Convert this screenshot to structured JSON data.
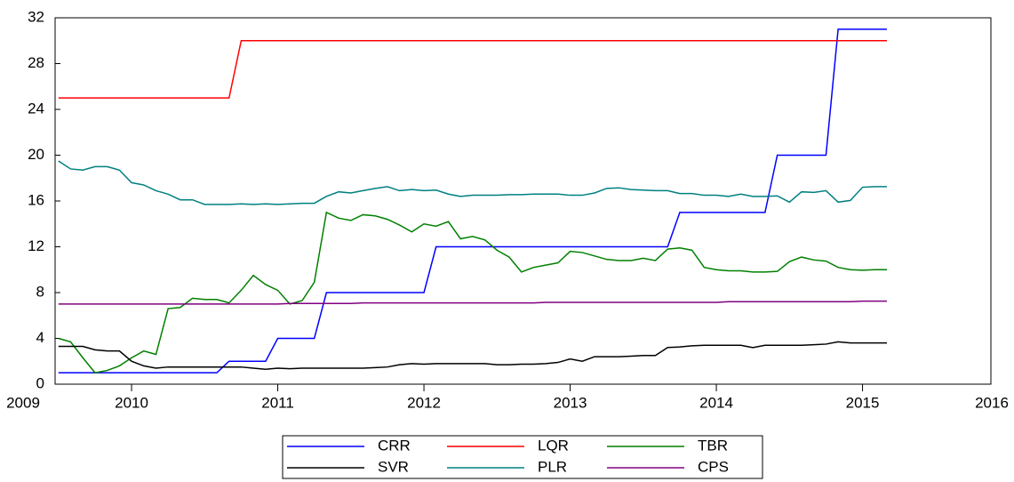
{
  "chart_data": {
    "type": "line",
    "x": [
      2009.5,
      2009.583,
      2009.667,
      2009.75,
      2009.833,
      2009.917,
      2010,
      2010.083,
      2010.167,
      2010.25,
      2010.333,
      2010.417,
      2010.5,
      2010.583,
      2010.667,
      2010.75,
      2010.833,
      2010.917,
      2011,
      2011.083,
      2011.167,
      2011.25,
      2011.333,
      2011.417,
      2011.5,
      2011.583,
      2011.667,
      2011.75,
      2011.833,
      2011.917,
      2012,
      2012.083,
      2012.167,
      2012.25,
      2012.333,
      2012.417,
      2012.5,
      2012.583,
      2012.667,
      2012.75,
      2012.833,
      2012.917,
      2013,
      2013.083,
      2013.167,
      2013.25,
      2013.333,
      2013.417,
      2013.5,
      2013.583,
      2013.667,
      2013.75,
      2013.833,
      2013.917,
      2014,
      2014.083,
      2014.167,
      2014.25,
      2014.333,
      2014.417,
      2014.5,
      2014.583,
      2014.667,
      2014.75,
      2014.833,
      2014.917,
      2015,
      2015.083,
      2015.167
    ],
    "series": [
      {
        "name": "CRR",
        "color": "#0000ff",
        "values": [
          1,
          1,
          1,
          1,
          1,
          1,
          1,
          1,
          1,
          1,
          1,
          1,
          1,
          1,
          2,
          2,
          2,
          2,
          4,
          4,
          4,
          4,
          8,
          8,
          8,
          8,
          8,
          8,
          8,
          8,
          8,
          12,
          12,
          12,
          12,
          12,
          12,
          12,
          12,
          12,
          12,
          12,
          12,
          12,
          12,
          12,
          12,
          12,
          12,
          12,
          12,
          15,
          15,
          15,
          15,
          15,
          15,
          15,
          15,
          20,
          20,
          20,
          20,
          20,
          31,
          31,
          31,
          31,
          31
        ]
      },
      {
        "name": "LQR",
        "color": "#ff0000",
        "values": [
          25,
          25,
          25,
          25,
          25,
          25,
          25,
          25,
          25,
          25,
          25,
          25,
          25,
          25,
          25,
          30,
          30,
          30,
          30,
          30,
          30,
          30,
          30,
          30,
          30,
          30,
          30,
          30,
          30,
          30,
          30,
          30,
          30,
          30,
          30,
          30,
          30,
          30,
          30,
          30,
          30,
          30,
          30,
          30,
          30,
          30,
          30,
          30,
          30,
          30,
          30,
          30,
          30,
          30,
          30,
          30,
          30,
          30,
          30,
          30,
          30,
          30,
          30,
          30,
          30,
          30,
          30,
          30,
          30
        ]
      },
      {
        "name": "TBR",
        "color": "#008000",
        "values": [
          4.0,
          3.7,
          2.3,
          1.0,
          1.2,
          1.6,
          2.3,
          2.9,
          2.6,
          6.6,
          6.7,
          7.5,
          7.4,
          7.4,
          7.1,
          8.2,
          9.5,
          8.7,
          8.2,
          7.0,
          7.3,
          8.9,
          15.0,
          14.5,
          14.3,
          14.8,
          14.7,
          14.4,
          13.9,
          13.3,
          14.0,
          13.8,
          14.2,
          12.7,
          12.9,
          12.6,
          11.7,
          11.1,
          9.8,
          10.2,
          10.4,
          10.6,
          11.6,
          11.5,
          11.2,
          10.9,
          10.8,
          10.8,
          11.0,
          10.8,
          11.8,
          11.9,
          11.7,
          10.2,
          10.0,
          9.9,
          9.9,
          9.8,
          9.8,
          9.85,
          10.7,
          11.1,
          10.85,
          10.75,
          10.2,
          10.0,
          9.95,
          10.0,
          10.0
        ]
      },
      {
        "name": "SVR",
        "color": "#000000",
        "values": [
          3.3,
          3.3,
          3.3,
          3.0,
          2.9,
          2.9,
          2.0,
          1.6,
          1.4,
          1.5,
          1.5,
          1.5,
          1.5,
          1.5,
          1.5,
          1.5,
          1.4,
          1.3,
          1.4,
          1.35,
          1.4,
          1.4,
          1.4,
          1.4,
          1.4,
          1.4,
          1.45,
          1.5,
          1.7,
          1.8,
          1.75,
          1.8,
          1.8,
          1.8,
          1.8,
          1.8,
          1.7,
          1.7,
          1.75,
          1.75,
          1.8,
          1.9,
          2.2,
          2.0,
          2.4,
          2.4,
          2.4,
          2.45,
          2.5,
          2.5,
          3.2,
          3.25,
          3.35,
          3.4,
          3.4,
          3.4,
          3.4,
          3.2,
          3.4,
          3.4,
          3.4,
          3.4,
          3.45,
          3.5,
          3.7,
          3.6,
          3.6,
          3.6,
          3.6
        ]
      },
      {
        "name": "PLR",
        "color": "#008080",
        "values": [
          19.5,
          18.8,
          18.7,
          19.0,
          19.0,
          18.7,
          17.6,
          17.4,
          16.9,
          16.6,
          16.1,
          16.1,
          15.7,
          15.7,
          15.7,
          15.75,
          15.7,
          15.75,
          15.7,
          15.75,
          15.8,
          15.8,
          16.4,
          16.8,
          16.7,
          16.9,
          17.1,
          17.25,
          16.9,
          17.0,
          16.9,
          16.95,
          16.6,
          16.4,
          16.5,
          16.5,
          16.5,
          16.55,
          16.55,
          16.6,
          16.6,
          16.6,
          16.5,
          16.5,
          16.7,
          17.1,
          17.15,
          17.0,
          16.95,
          16.9,
          16.9,
          16.65,
          16.65,
          16.5,
          16.5,
          16.4,
          16.6,
          16.4,
          16.4,
          16.45,
          15.9,
          16.8,
          16.75,
          16.9,
          15.9,
          16.05,
          17.2,
          17.25,
          17.25
        ]
      },
      {
        "name": "CPS",
        "color": "#800080",
        "values": [
          7.0,
          7.0,
          7.0,
          7.0,
          7.0,
          7.0,
          7.0,
          7.0,
          7.0,
          7.0,
          7.0,
          7.0,
          7.0,
          7.0,
          7.0,
          7.0,
          7.0,
          7.0,
          7.0,
          7.05,
          7.05,
          7.05,
          7.05,
          7.05,
          7.05,
          7.1,
          7.1,
          7.1,
          7.1,
          7.1,
          7.1,
          7.1,
          7.1,
          7.1,
          7.1,
          7.1,
          7.1,
          7.1,
          7.1,
          7.1,
          7.15,
          7.15,
          7.15,
          7.15,
          7.15,
          7.15,
          7.15,
          7.15,
          7.15,
          7.15,
          7.15,
          7.15,
          7.15,
          7.15,
          7.15,
          7.2,
          7.2,
          7.2,
          7.2,
          7.2,
          7.2,
          7.2,
          7.2,
          7.2,
          7.2,
          7.2,
          7.25,
          7.25,
          7.25
        ]
      }
    ],
    "xlim": [
      2009.477,
      2015.878
    ],
    "xticks": [
      2009,
      2010,
      2011,
      2012,
      2013,
      2014,
      2015,
      2016
    ],
    "ylim": [
      0,
      32
    ],
    "yticks": [
      0,
      4,
      8,
      12,
      16,
      20,
      24,
      28,
      32
    ]
  }
}
